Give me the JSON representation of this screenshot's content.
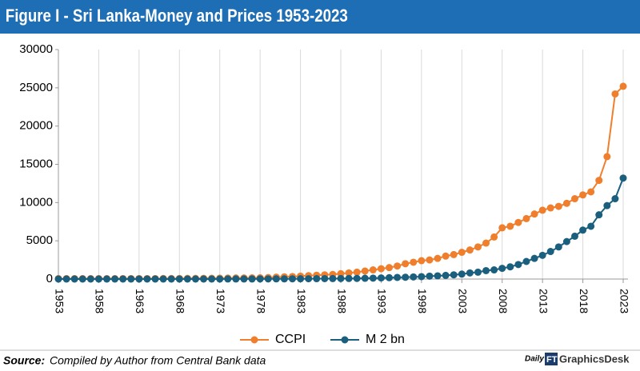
{
  "chart_data": {
    "type": "line",
    "title": "Figure I - Sri Lanka-Money and Prices 1953-2023",
    "x": [
      1953,
      1954,
      1955,
      1956,
      1957,
      1958,
      1959,
      1960,
      1961,
      1962,
      1963,
      1964,
      1965,
      1966,
      1967,
      1968,
      1969,
      1970,
      1971,
      1972,
      1973,
      1974,
      1975,
      1976,
      1977,
      1978,
      1979,
      1980,
      1981,
      1982,
      1983,
      1984,
      1985,
      1986,
      1987,
      1988,
      1989,
      1990,
      1991,
      1992,
      1993,
      1994,
      1995,
      1996,
      1997,
      1998,
      1999,
      2000,
      2001,
      2002,
      2003,
      2004,
      2005,
      2006,
      2007,
      2008,
      2009,
      2010,
      2011,
      2012,
      2013,
      2014,
      2015,
      2016,
      2017,
      2018,
      2019,
      2020,
      2021,
      2022,
      2023
    ],
    "series": [
      {
        "name": "CCPI",
        "color": "#f07f2d",
        "values": [
          60,
          60,
          61,
          61,
          62,
          63,
          64,
          65,
          66,
          67,
          68,
          69,
          70,
          72,
          75,
          80,
          85,
          90,
          95,
          105,
          115,
          130,
          140,
          150,
          160,
          170,
          200,
          250,
          290,
          330,
          380,
          450,
          500,
          550,
          600,
          700,
          800,
          900,
          1050,
          1200,
          1350,
          1500,
          1700,
          2000,
          2200,
          2400,
          2500,
          2700,
          3000,
          3200,
          3500,
          3800,
          4200,
          4700,
          5500,
          6700,
          6900,
          7400,
          7900,
          8500,
          9000,
          9300,
          9500,
          9900,
          10500,
          11000,
          11400,
          12900,
          16000,
          24200,
          25200
        ]
      },
      {
        "name": "M 2 bn",
        "color": "#1b5f7e",
        "values": [
          1,
          1,
          1,
          1,
          1,
          1,
          1,
          2,
          2,
          2,
          2,
          2,
          2,
          3,
          3,
          3,
          4,
          4,
          5,
          5,
          6,
          7,
          8,
          9,
          12,
          15,
          18,
          20,
          25,
          30,
          38,
          45,
          50,
          55,
          62,
          70,
          75,
          80,
          100,
          120,
          150,
          180,
          210,
          240,
          280,
          320,
          380,
          420,
          480,
          550,
          650,
          800,
          900,
          1100,
          1200,
          1400,
          1600,
          1900,
          2300,
          2700,
          3100,
          3600,
          4200,
          4900,
          5600,
          6400,
          6900,
          8400,
          9600,
          10500,
          13200
        ]
      }
    ],
    "xlim": [
      1953,
      2023
    ],
    "xticks": [
      1953,
      1958,
      1963,
      1968,
      1973,
      1978,
      1983,
      1988,
      1993,
      1998,
      2003,
      2008,
      2013,
      2018,
      2023
    ],
    "ylim": [
      0,
      30000
    ],
    "yticks": [
      0,
      5000,
      10000,
      15000,
      20000,
      25000,
      30000
    ],
    "grid": true,
    "legend": "bottom",
    "source_label": "Source:",
    "source_text": "Compiled by Author from Central Bank data",
    "logo_daily": "Daily",
    "logo_ft": "FT",
    "logo_text": "GraphicsDesk"
  }
}
